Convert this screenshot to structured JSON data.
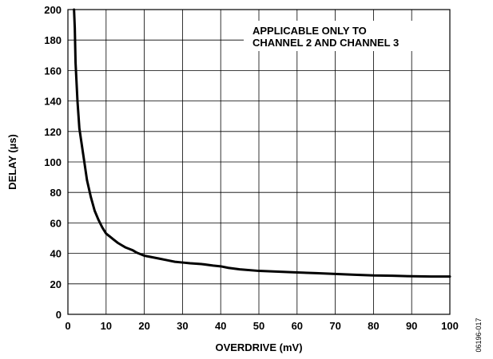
{
  "chart_data": {
    "type": "line",
    "xlabel": "OVERDRIVE (mV)",
    "ylabel": "DELAY (µs)",
    "xlim": [
      0,
      100
    ],
    "ylim": [
      0,
      200
    ],
    "x_ticks": [
      0,
      10,
      20,
      30,
      40,
      50,
      60,
      70,
      80,
      90,
      100
    ],
    "y_ticks": [
      0,
      20,
      40,
      60,
      80,
      100,
      120,
      140,
      160,
      180,
      200
    ],
    "grid": true,
    "annotation": [
      "APPLICABLE ONLY TO",
      "CHANNEL 2 AND CHANNEL 3"
    ],
    "series": [
      {
        "x": [
          1.6,
          1.8,
          2,
          2.5,
          3,
          4,
          5,
          6,
          7,
          8,
          9,
          10,
          11,
          12,
          13,
          14,
          15,
          16,
          17,
          18,
          20,
          22,
          24,
          26,
          28,
          30,
          32,
          35,
          38,
          40,
          42,
          45,
          50,
          55,
          60,
          65,
          70,
          75,
          80,
          85,
          90,
          95,
          100
        ],
        "y": [
          200,
          188,
          165,
          140,
          122,
          105,
          88,
          77,
          68,
          62,
          57,
          53,
          51,
          49,
          47,
          45.5,
          44,
          43,
          42,
          40.5,
          38.5,
          37.5,
          36.5,
          35.5,
          34.5,
          34,
          33.5,
          33,
          32,
          31.5,
          30.5,
          29.5,
          28.5,
          28,
          27.5,
          27,
          26.5,
          26,
          25.5,
          25.3,
          25,
          24.8,
          24.8
        ]
      }
    ]
  },
  "figure_id": "06196-017"
}
